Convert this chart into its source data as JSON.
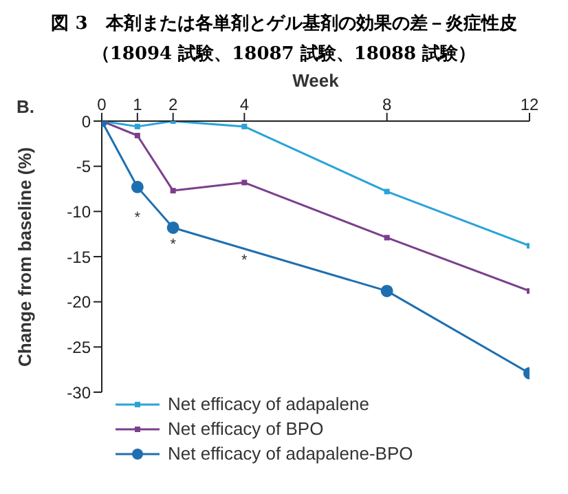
{
  "chart_data": {
    "type": "line",
    "title": "図 3　本剤または各単剤とゲル基剤の効果の差－炎症性皮",
    "subtitle": "（18094 試験、18087 試験、18088 試験）",
    "xlabel": "Week",
    "ylabel": "Change from baseline (%)",
    "xlim": [
      0,
      12
    ],
    "xticks": [
      0,
      1,
      2,
      4,
      8,
      12
    ],
    "ylim": [
      -30,
      0
    ],
    "yticks": [
      0,
      -5,
      -10,
      -15,
      -20,
      -25,
      -30
    ],
    "grid": false,
    "legend": "bottom left",
    "series": [
      {
        "name": "Net efficacy of adapalene",
        "color": "#2aa3d8",
        "marker": "square",
        "x": [
          0,
          1,
          2,
          4,
          8,
          12
        ],
        "values": [
          0,
          -0.6,
          0,
          -0.6,
          -7.8,
          -13.8
        ]
      },
      {
        "name": "Net efficacy of BPO",
        "color": "#7b3f8c",
        "marker": "square",
        "x": [
          0,
          1,
          2,
          4,
          8,
          12
        ],
        "values": [
          0,
          -1.6,
          -7.7,
          -6.8,
          -12.9,
          -18.8
        ]
      },
      {
        "name": "Net efficacy of adapalene-BPO",
        "color": "#1f6fb0",
        "marker": "circle",
        "x": [
          0,
          1,
          2,
          8,
          12
        ],
        "values": [
          0,
          -7.3,
          -11.8,
          -18.8,
          -27.9
        ]
      }
    ],
    "annotations": [
      "B.",
      "*",
      "*",
      "*"
    ]
  }
}
